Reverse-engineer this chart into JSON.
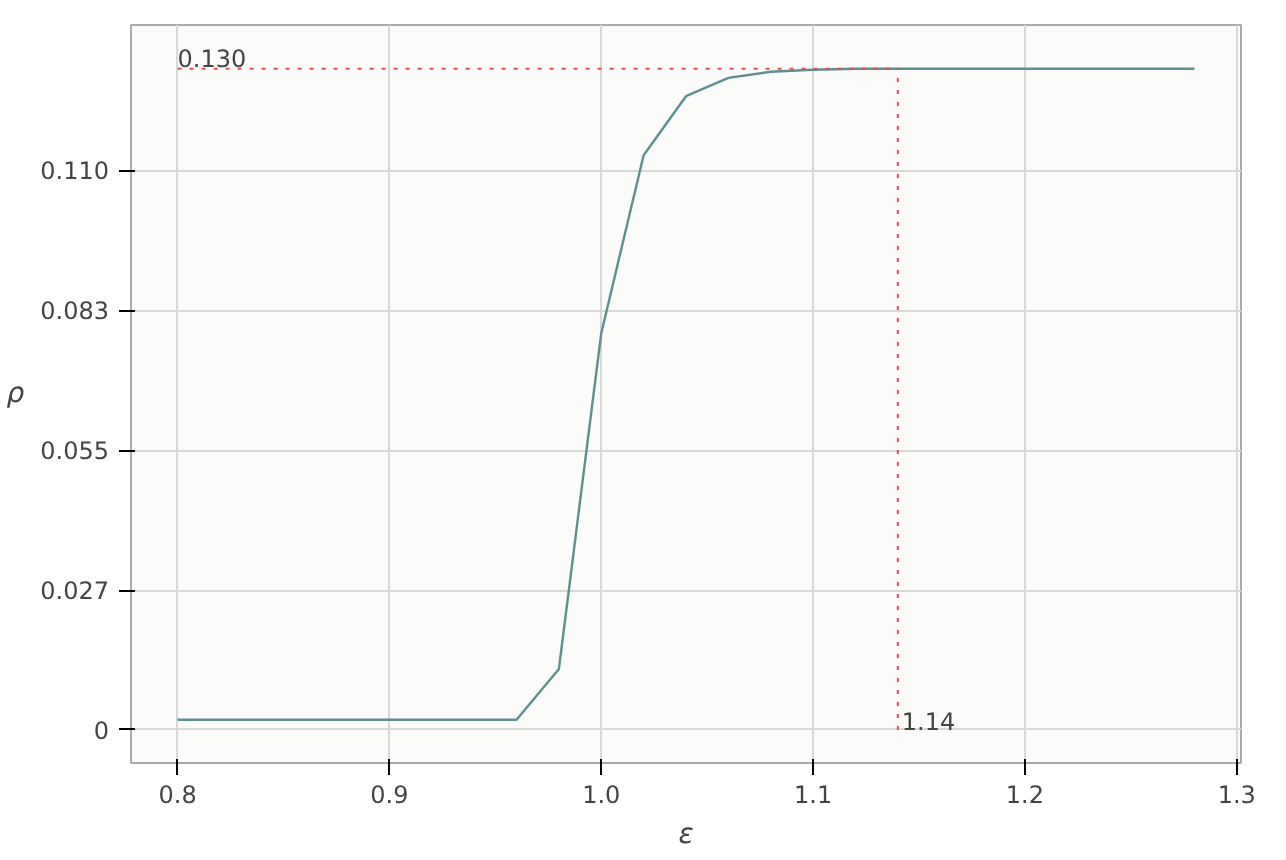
{
  "chart_data": {
    "type": "line",
    "xlabel": "ε",
    "ylabel": "ρ",
    "x": [
      0.8,
      0.96,
      0.98,
      1.0,
      1.02,
      1.04,
      1.06,
      1.08,
      1.1,
      1.12,
      1.14,
      1.28
    ],
    "series": [
      {
        "color": "#5f8f8f",
        "values": [
          0.002,
          0.002,
          0.012,
          0.078,
          0.113,
          0.1246,
          0.1282,
          0.1294,
          0.1298,
          0.13,
          0.13,
          0.13
        ]
      }
    ],
    "xlim": [
      0.778,
      1.302
    ],
    "ylim": [
      -0.0065,
      0.1386
    ],
    "xticks": [
      {
        "value": 0.8,
        "label": "0.8"
      },
      {
        "value": 0.9,
        "label": "0.9"
      },
      {
        "value": 1.0,
        "label": "1.0"
      },
      {
        "value": 1.1,
        "label": "1.1"
      },
      {
        "value": 1.2,
        "label": "1.2"
      },
      {
        "value": 1.3,
        "label": "1.3"
      }
    ],
    "yticks": [
      0,
      {
        "value": 0.0275,
        "label": "0.027"
      },
      0.055,
      {
        "value": 0.0825,
        "label": "0.083"
      },
      {
        "value": 0.11,
        "label": "0.110"
      }
    ],
    "ref_lines": [
      {
        "axis": "y",
        "value": 0.13,
        "label": "0.130",
        "color": "#e05050",
        "line_style": "dotted"
      },
      {
        "axis": "x",
        "value": 1.14,
        "label": "1.14",
        "color": "#e05050",
        "line_style": "dotted"
      }
    ],
    "grid": true,
    "marker": "none",
    "line_style": "solid"
  }
}
